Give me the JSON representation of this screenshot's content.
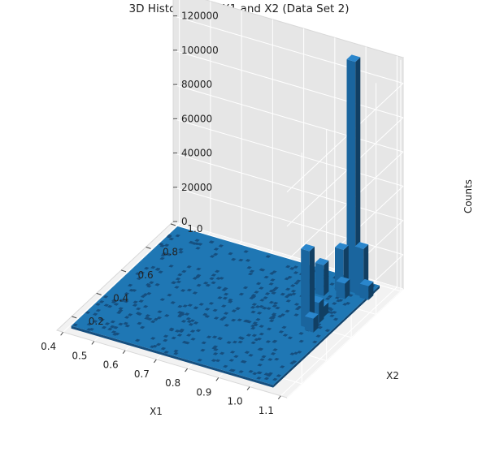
{
  "chart_data": {
    "type": "bar3d",
    "title": "3D Histogram of X1 and X2 (Data Set 2)",
    "xlabel": "X1",
    "ylabel": "X2",
    "zlabel": "Counts",
    "xlim": [
      0.38,
      1.12
    ],
    "ylim": [
      0.08,
      1.02
    ],
    "zlim": [
      0,
      135000
    ],
    "x_ticks": [
      "0.4",
      "0.5",
      "0.6",
      "0.7",
      "0.8",
      "0.9",
      "1.0",
      "1.1"
    ],
    "y_ticks": [
      "0.2",
      "0.4",
      "0.6",
      "0.8",
      "1.0"
    ],
    "z_ticks": [
      "0",
      "20000",
      "40000",
      "60000",
      "80000",
      "100000",
      "120000"
    ],
    "bar_color": "#1f77b4",
    "grid": true,
    "bars": [
      {
        "x": 1.0,
        "y": 0.92,
        "count": 135000
      },
      {
        "x": 1.03,
        "y": 0.91,
        "count": 28000
      },
      {
        "x": 0.97,
        "y": 0.9,
        "count": 25000
      },
      {
        "x": 0.93,
        "y": 0.84,
        "count": 18000
      },
      {
        "x": 1.05,
        "y": 0.9,
        "count": 8000
      },
      {
        "x": 0.99,
        "y": 0.86,
        "count": 9000
      },
      {
        "x": 0.98,
        "y": 0.6,
        "count": 45000
      },
      {
        "x": 0.99,
        "y": 0.65,
        "count": 12000
      },
      {
        "x": 0.985,
        "y": 0.7,
        "count": 6000
      },
      {
        "x": 1.0,
        "y": 0.58,
        "count": 8000
      }
    ]
  }
}
